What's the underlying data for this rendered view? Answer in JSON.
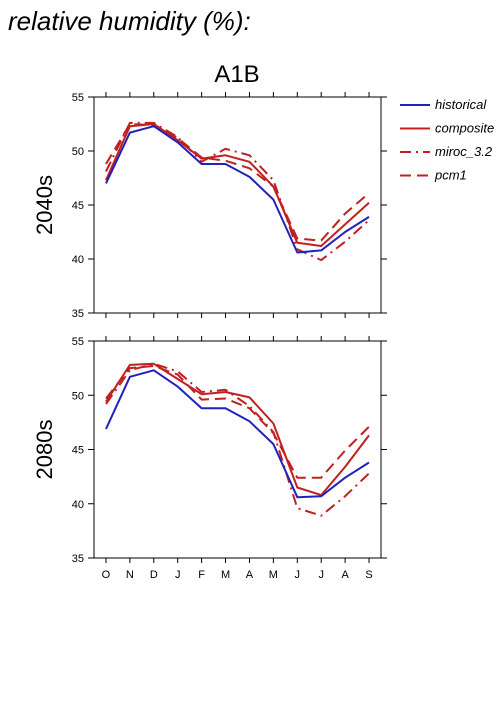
{
  "figure_title": "relative humidity (%):",
  "scenario_title": "A1B",
  "chart_data": [
    {
      "type": "line",
      "panel_label": "2040s",
      "x": [
        "O",
        "N",
        "D",
        "J",
        "F",
        "M",
        "A",
        "M",
        "J",
        "J",
        "A",
        "S"
      ],
      "ylim": [
        35,
        55
      ],
      "yticks": [
        35,
        40,
        45,
        50,
        55
      ],
      "legend": "top-right",
      "grid": false,
      "series": [
        {
          "name": "historical",
          "color": "#2222bb",
          "dash": "solid",
          "values": [
            47.0,
            51.7,
            52.3,
            50.8,
            48.8,
            48.8,
            47.6,
            45.5,
            40.6,
            40.8,
            42.5,
            43.9
          ]
        },
        {
          "name": "composite",
          "color": "#c02020",
          "dash": "solid",
          "values": [
            47.3,
            52.3,
            52.5,
            51.0,
            49.3,
            49.6,
            49.0,
            46.7,
            41.5,
            41.2,
            43.2,
            45.2
          ]
        },
        {
          "name": "miroc_3.2",
          "color": "#c02020",
          "dash": "dashdot",
          "values": [
            48.1,
            52.6,
            52.6,
            51.3,
            49.0,
            50.2,
            49.6,
            47.3,
            40.9,
            39.9,
            41.6,
            43.6
          ]
        },
        {
          "name": "pcm1",
          "color": "#c02020",
          "dash": "dashed",
          "values": [
            48.8,
            52.5,
            52.4,
            51.2,
            49.4,
            49.1,
            48.4,
            46.7,
            41.9,
            41.7,
            44.2,
            46.1
          ]
        }
      ]
    },
    {
      "type": "line",
      "panel_label": "2080s",
      "x": [
        "O",
        "N",
        "D",
        "J",
        "F",
        "M",
        "A",
        "M",
        "J",
        "J",
        "A",
        "S"
      ],
      "ylim": [
        35,
        55
      ],
      "yticks": [
        35,
        40,
        45,
        50,
        55
      ],
      "grid": false,
      "series": [
        {
          "name": "historical",
          "color": "#2222bb",
          "dash": "solid",
          "values": [
            46.9,
            51.7,
            52.3,
            50.8,
            48.8,
            48.8,
            47.6,
            45.5,
            40.6,
            40.7,
            42.4,
            43.8
          ]
        },
        {
          "name": "composite",
          "color": "#c02020",
          "dash": "solid",
          "values": [
            49.4,
            52.8,
            52.9,
            51.5,
            50.1,
            50.3,
            49.8,
            47.4,
            41.5,
            40.8,
            43.4,
            46.3
          ]
        },
        {
          "name": "miroc_3.2",
          "color": "#c02020",
          "dash": "dashdot",
          "values": [
            49.2,
            52.3,
            52.9,
            52.2,
            50.3,
            50.5,
            49.0,
            46.6,
            39.6,
            38.9,
            40.7,
            42.8
          ]
        },
        {
          "name": "pcm1",
          "color": "#c02020",
          "dash": "dashed",
          "values": [
            49.7,
            52.5,
            52.7,
            51.9,
            49.6,
            49.7,
            48.8,
            46.5,
            42.4,
            42.4,
            44.9,
            47.1
          ]
        }
      ]
    }
  ]
}
